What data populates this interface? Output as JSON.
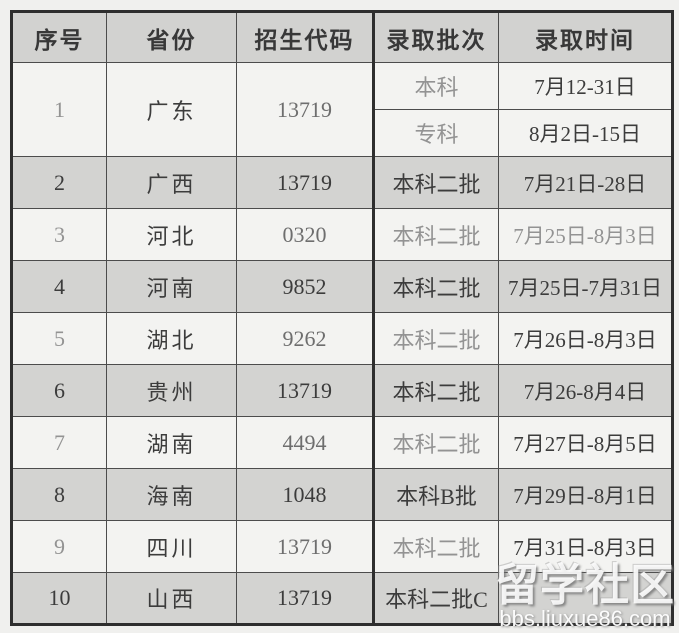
{
  "colors": {
    "header_bg": "#d2d2d0",
    "row_gray_bg": "#d3d3d1",
    "row_light_bg": "#f3f3f1",
    "border": "#2e2e2e",
    "text_dark": "#3c3c3c",
    "text_muted": "#939393",
    "watermark_text": "#ffffff"
  },
  "table": {
    "headers": [
      "序号",
      "省份",
      "招生代码",
      "录取批次",
      "录取时间"
    ],
    "row1": {
      "no": "1",
      "province": "广东",
      "code": "13719",
      "sub": [
        {
          "batch": "本科",
          "time": "7月12-31日"
        },
        {
          "batch": "专科",
          "time": "8月2日-15日"
        }
      ]
    },
    "rows": [
      {
        "no": "2",
        "province": "广西",
        "code": "13719",
        "batch": "本科二批",
        "time": "7月21日-28日"
      },
      {
        "no": "3",
        "province": "河北",
        "code": "0320",
        "batch": "本科二批",
        "time": "7月25日-8月3日"
      },
      {
        "no": "4",
        "province": "河南",
        "code": "9852",
        "batch": "本科二批",
        "time": "7月25日-7月31日"
      },
      {
        "no": "5",
        "province": "湖北",
        "code": "9262",
        "batch": "本科二批",
        "time": "7月26日-8月3日"
      },
      {
        "no": "6",
        "province": "贵州",
        "code": "13719",
        "batch": "本科二批",
        "time": "7月26-8月4日"
      },
      {
        "no": "7",
        "province": "湖南",
        "code": "4494",
        "batch": "本科二批",
        "time": "7月27日-8月5日"
      },
      {
        "no": "8",
        "province": "海南",
        "code": "1048",
        "batch": "本科B批",
        "time": "7月29日-8月1日"
      },
      {
        "no": "9",
        "province": "四川",
        "code": "13719",
        "batch": "本科二批",
        "time": "7月31日-8月3日"
      },
      {
        "no": "10",
        "province": "山西",
        "code": "13719",
        "batch": "本科二批C",
        "time": ""
      }
    ]
  },
  "watermark": {
    "title": "留学社区",
    "url": "bbs.liuxue86.com"
  }
}
